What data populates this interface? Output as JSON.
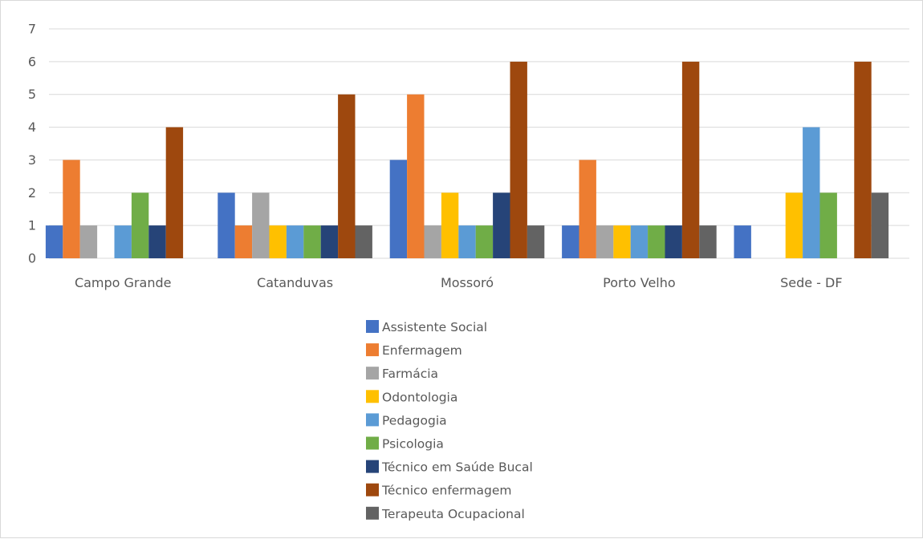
{
  "chart_data": {
    "type": "bar",
    "title": "",
    "xlabel": "",
    "ylabel": "",
    "ylim": [
      0,
      7
    ],
    "yticks": [
      0,
      1,
      2,
      3,
      4,
      5,
      6,
      7
    ],
    "grid": true,
    "legend": "bottom",
    "categories": [
      "Campo Grande",
      "Catanduvas",
      "Mossoró",
      "Porto Velho",
      "Sede - DF"
    ],
    "series": [
      {
        "name": "Assistente Social",
        "color": "#4472C4",
        "values": [
          1,
          2,
          3,
          1,
          1
        ]
      },
      {
        "name": "Enfermagem",
        "color": "#ED7D31",
        "values": [
          3,
          1,
          5,
          3,
          0
        ]
      },
      {
        "name": "Farmácia",
        "color": "#A5A5A5",
        "values": [
          1,
          2,
          1,
          1,
          0
        ]
      },
      {
        "name": "Odontologia",
        "color": "#FFC000",
        "values": [
          0,
          1,
          2,
          1,
          2
        ]
      },
      {
        "name": "Pedagogia",
        "color": "#5B9BD5",
        "values": [
          1,
          1,
          1,
          1,
          4
        ]
      },
      {
        "name": "Psicologia",
        "color": "#70AD47",
        "values": [
          2,
          1,
          1,
          1,
          2
        ]
      },
      {
        "name": "Técnico em Saúde Bucal",
        "color": "#264478",
        "values": [
          1,
          1,
          2,
          1,
          0
        ]
      },
      {
        "name": "Técnico enfermagem",
        "color": "#9E480E",
        "values": [
          4,
          5,
          6,
          6,
          6
        ]
      },
      {
        "name": "Terapeuta Ocupacional",
        "color": "#636363",
        "values": [
          0,
          1,
          1,
          1,
          2
        ]
      }
    ]
  }
}
